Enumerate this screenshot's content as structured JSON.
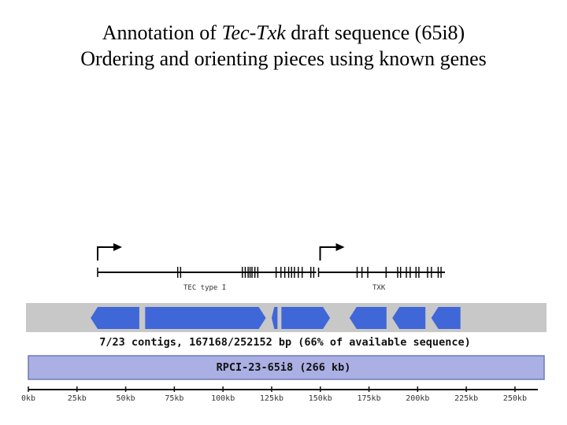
{
  "title": {
    "line1_prefix": "Annotation of ",
    "line1_gene": "Tec-Txk",
    "line1_suffix": " draft sequence (65i8)",
    "line2": "Ordering and orienting pieces using known genes"
  },
  "genes": [
    {
      "name": "TEC type I",
      "start_kb": 0,
      "end_kb": 114.5,
      "exon_kb": [
        41.5,
        43,
        75,
        76.5,
        78,
        79,
        80,
        81.5,
        83,
        92.5,
        95,
        97,
        99,
        100.5,
        102,
        104,
        106,
        110.5,
        112
      ]
    },
    {
      "name": "TXK",
      "start_kb": 114.5,
      "end_kb": 180,
      "exon_kb": [
        134.5,
        137,
        140,
        149.5,
        155.5,
        157,
        160,
        162,
        165,
        166.5,
        171,
        173,
        176.5,
        178
      ]
    }
  ],
  "contigs": [
    {
      "start_kb": 32,
      "end_kb": 57,
      "strand": "-"
    },
    {
      "start_kb": 60,
      "end_kb": 122,
      "strand": "+"
    },
    {
      "start_kb": 125,
      "end_kb": 128,
      "strand": "-"
    },
    {
      "start_kb": 130,
      "end_kb": 155,
      "strand": "+"
    },
    {
      "start_kb": 165,
      "end_kb": 184,
      "strand": "-"
    },
    {
      "start_kb": 187,
      "end_kb": 204,
      "strand": "-"
    },
    {
      "start_kb": 207,
      "end_kb": 222,
      "strand": "-"
    }
  ],
  "contig_summary": "7/23 contigs, 167168/252152 bp (66% of available sequence)",
  "bac_label": "RPCI-23-65i8 (266 kb)",
  "scale": {
    "min_kb": 0,
    "max_kb": 265,
    "ticks": [
      0,
      25,
      50,
      75,
      100,
      125,
      150,
      175,
      200,
      225,
      250
    ],
    "tick_labels": [
      "0kb",
      "25kb",
      "50kb",
      "75kb",
      "100kb",
      "125kb",
      "150kb",
      "175kb",
      "200kb",
      "225kb",
      "250kb"
    ]
  },
  "colors": {
    "contig_fill": "#3f67d8",
    "contig_track": "#c8c8c8",
    "bac_fill": "#aab0e4",
    "bac_border": "#7078b8",
    "gene_line": "#000000"
  }
}
